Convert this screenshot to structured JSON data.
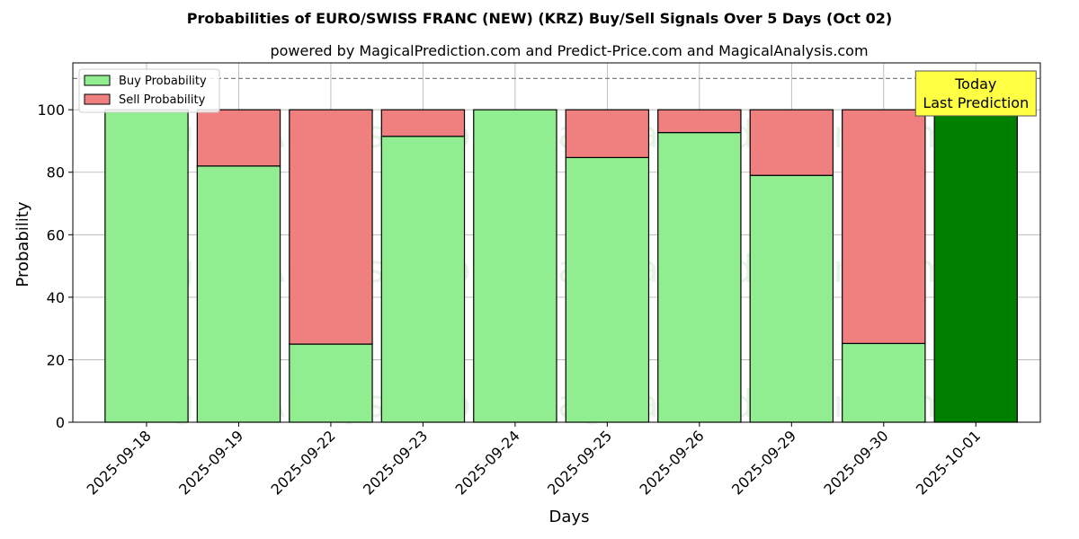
{
  "chart_data": {
    "type": "bar",
    "stacked": true,
    "title": "Probabilities of EURO/SWISS FRANC (NEW) (KRZ) Buy/Sell Signals Over 5 Days (Oct 02)",
    "subtitle": "powered by MagicalPrediction.com and Predict-Price.com and MagicalAnalysis.com",
    "xlabel": "Days",
    "ylabel": "Probability",
    "ylim": [
      0,
      115
    ],
    "yticks": [
      0,
      20,
      40,
      60,
      80,
      100
    ],
    "categories": [
      "2025-09-18",
      "2025-09-19",
      "2025-09-22",
      "2025-09-23",
      "2025-09-24",
      "2025-09-25",
      "2025-09-26",
      "2025-09-29",
      "2025-09-30",
      "2025-10-01"
    ],
    "series": [
      {
        "name": "Buy Probability",
        "color": "#90ee90",
        "values": [
          100,
          82,
          25,
          91.5,
          100,
          84.7,
          92.7,
          79,
          25.2,
          100
        ]
      },
      {
        "name": "Sell Probability",
        "color": "#f08080",
        "values": [
          0,
          18,
          75,
          8.5,
          0,
          15.3,
          7.3,
          21,
          74.8,
          0
        ]
      }
    ],
    "highlight": {
      "index": 9,
      "color": "#008000"
    },
    "reference_line": {
      "y": 110,
      "style": "dashed",
      "color": "#808080"
    },
    "annotation": {
      "lines": [
        "Today",
        "Last Prediction"
      ],
      "category": "2025-10-01",
      "background": "#ffff44"
    },
    "legend": {
      "placement": "top-left"
    },
    "grid": true,
    "watermarks": [
      "MagicalAnalysis.com",
      "MagicalPrediction.com",
      "MagicalAnalysis.com",
      "MagicalPrediction.com",
      "MagicalAnalysis.com",
      "MagicalPrediction.com"
    ]
  }
}
